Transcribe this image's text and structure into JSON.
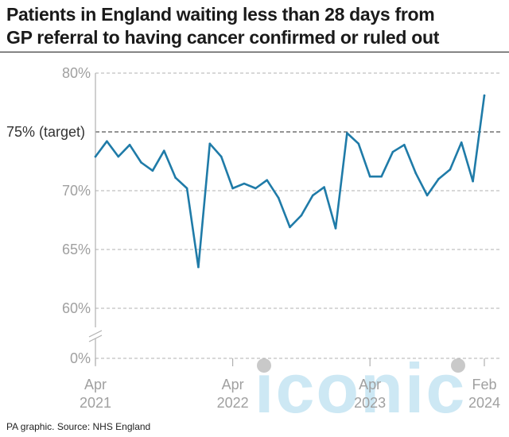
{
  "header": {
    "title_line1": "Patients in England waiting less than 28 days from",
    "title_line2": "GP referral to having cancer confirmed or ruled out"
  },
  "footer": {
    "source": "PA graphic. Source: NHS England"
  },
  "watermark": {
    "text": "iconic"
  },
  "colors": {
    "line": "#1f7ba8",
    "grid": "#b0b0b0",
    "target": "#555555",
    "axis_text": "#a0a0a0",
    "watermark": "#a6d6ec"
  },
  "chart_data": {
    "type": "line",
    "title": "Patients in England waiting less than 28 days from GP referral to having cancer confirmed or ruled out",
    "unit": "%",
    "y_ticks": [
      {
        "value": 80,
        "label": "80%"
      },
      {
        "value": 70,
        "label": "70%"
      },
      {
        "value": 65,
        "label": "65%"
      },
      {
        "value": 60,
        "label": "60%"
      },
      {
        "value": 0,
        "label": "0%"
      }
    ],
    "target": {
      "value": 75,
      "label": "75% (target)"
    },
    "axis_break": {
      "from": 0,
      "to": 58
    },
    "ylim": [
      0,
      80
    ],
    "grid": true,
    "x_ticks": [
      {
        "date": "2021-04",
        "label_line1": "Apr",
        "label_line2": "2021"
      },
      {
        "date": "2022-04",
        "label_line1": "Apr",
        "label_line2": "2022"
      },
      {
        "date": "2023-04",
        "label_line1": "Apr",
        "label_line2": "2023"
      },
      {
        "date": "2024-02",
        "label_line1": "Feb",
        "label_line2": "2024"
      }
    ],
    "series": [
      {
        "x": [
          "2021-04",
          "2021-05",
          "2021-06",
          "2021-07",
          "2021-08",
          "2021-09",
          "2021-10",
          "2021-11",
          "2021-12",
          "2022-01",
          "2022-02",
          "2022-03",
          "2022-04",
          "2022-05",
          "2022-06",
          "2022-07",
          "2022-08",
          "2022-09",
          "2022-10",
          "2022-11",
          "2022-12",
          "2023-01",
          "2023-02",
          "2023-03",
          "2023-04",
          "2023-05",
          "2023-06",
          "2023-07",
          "2023-08",
          "2023-09",
          "2023-10",
          "2023-11",
          "2023-12",
          "2024-01",
          "2024-02"
        ],
        "values": [
          72.9,
          74.2,
          72.9,
          73.9,
          72.4,
          71.7,
          73.4,
          71.1,
          70.2,
          63.5,
          74.0,
          72.9,
          70.2,
          70.6,
          70.2,
          70.9,
          69.4,
          66.9,
          67.9,
          69.6,
          70.3,
          66.8,
          74.9,
          74.0,
          71.2,
          71.2,
          73.3,
          73.9,
          71.5,
          69.6,
          71.0,
          71.8,
          74.1,
          70.8,
          78.1
        ]
      }
    ]
  }
}
